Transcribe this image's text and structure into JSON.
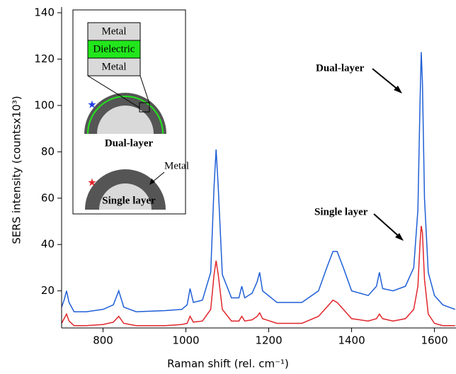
{
  "chart_data": {
    "type": "line",
    "x_label": "Raman shift (rel. cm⁻¹)",
    "y_label": "SERS intensity (countsx10³)",
    "xlim": [
      700,
      1652
    ],
    "ylim": [
      4,
      140
    ],
    "xticks": [
      800,
      1000,
      1200,
      1400,
      1600
    ],
    "yticks": [
      20,
      40,
      60,
      80,
      100,
      120,
      140
    ],
    "x": [
      700,
      706,
      712,
      718,
      730,
      760,
      800,
      825,
      838,
      850,
      880,
      950,
      990,
      1003,
      1010,
      1018,
      1040,
      1060,
      1068,
      1073,
      1078,
      1088,
      1110,
      1128,
      1135,
      1142,
      1160,
      1172,
      1178,
      1185,
      1220,
      1280,
      1320,
      1340,
      1355,
      1365,
      1380,
      1400,
      1440,
      1460,
      1467,
      1475,
      1500,
      1530,
      1550,
      1560,
      1565,
      1568,
      1571,
      1576,
      1585,
      1600,
      1620,
      1650
    ],
    "series": [
      {
        "color": "#1f5fd6",
        "values": [
          13,
          16,
          20,
          15,
          11,
          11,
          12,
          14,
          20,
          13,
          11,
          11.5,
          12,
          14,
          21,
          15,
          16,
          28,
          65,
          81,
          65,
          27,
          17,
          17,
          22,
          17,
          19,
          24,
          28,
          20,
          15,
          15,
          20,
          30,
          37,
          37,
          30,
          20,
          18,
          22,
          28,
          21,
          20,
          22,
          30,
          55,
          100,
          123,
          110,
          60,
          28,
          18,
          14,
          12
        ]
      },
      {
        "color": "#e0262b",
        "values": [
          6,
          8,
          10,
          7,
          5,
          5,
          5.5,
          6.5,
          9,
          6,
          5,
          5,
          5.5,
          6,
          9,
          6.5,
          7,
          12,
          27,
          33,
          27,
          12,
          7,
          7,
          9,
          7,
          7.5,
          9,
          10.5,
          8,
          6,
          6,
          9,
          13,
          16,
          15,
          12,
          8,
          7,
          8,
          10,
          8,
          7,
          8,
          12,
          22,
          40,
          48,
          45,
          25,
          10,
          6,
          5,
          5
        ]
      }
    ],
    "annotations": [
      "Dual-layer",
      "Single layer"
    ]
  },
  "inset": {
    "stack": [
      "Metal",
      "Dielectric",
      "Metal"
    ],
    "dual_label": "Dual-layer",
    "metal_label": "Metal",
    "single_label": "Single layer"
  }
}
